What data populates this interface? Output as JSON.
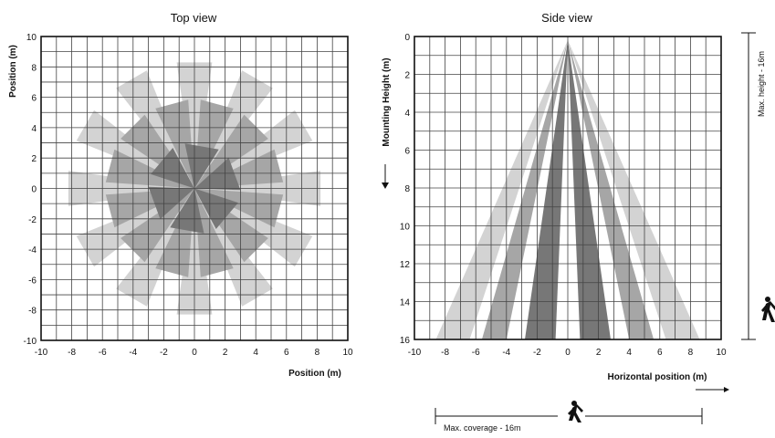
{
  "top_view": {
    "title": "Top view",
    "xlabel": "Position (m)",
    "ylabel": "Position (m)",
    "x_ticks": [
      "-10",
      "-8",
      "-6",
      "-4",
      "-2",
      "0",
      "2",
      "4",
      "6",
      "8",
      "10"
    ],
    "y_ticks": [
      "10",
      "8",
      "6",
      "4",
      "2",
      "0",
      "-2",
      "-4",
      "-6",
      "-8",
      "-10"
    ]
  },
  "side_view": {
    "title": "Side view",
    "xlabel": "Horizontal position (m)",
    "ylabel": "Mounting Height (m)",
    "x_ticks": [
      "-10",
      "-8",
      "-6",
      "-4",
      "-2",
      "0",
      "2",
      "4",
      "6",
      "8",
      "10"
    ],
    "y_ticks": [
      "0",
      "2",
      "4",
      "6",
      "8",
      "10",
      "12",
      "14",
      "16"
    ],
    "max_height_label": "Max. height - 16m",
    "max_coverage_label": "Max. coverage - 16m"
  },
  "colors": {
    "light": "#d3d3d3",
    "mid": "#a6a6a6",
    "dark": "#777777",
    "grid": "#444444"
  },
  "chart_data": [
    {
      "type": "other",
      "title": "Top view",
      "xlabel": "Position (m)",
      "ylabel": "Position (m)",
      "xlim": [
        -10,
        10
      ],
      "ylim": [
        -10,
        10
      ],
      "grid": true,
      "rings": [
        {
          "shade": "dark",
          "radius_m": 3,
          "count": 6
        },
        {
          "shade": "mid",
          "radius_m": 5.8,
          "count": 12
        },
        {
          "shade": "light",
          "radius_m": 8.3,
          "count": 12
        }
      ]
    },
    {
      "type": "other",
      "title": "Side view",
      "xlabel": "Horizontal position (m)",
      "ylabel": "Mounting Height (m)",
      "xlim": [
        -10,
        10
      ],
      "ylim": [
        0,
        16
      ],
      "grid": true,
      "apex": {
        "x": 0,
        "height": 0
      },
      "beams": [
        {
          "shade": "light",
          "x_at_16m": [
            -8.6,
            -6.4
          ]
        },
        {
          "shade": "mid",
          "x_at_16m": [
            -5.6,
            -4
          ]
        },
        {
          "shade": "dark",
          "x_at_16m": [
            -2.8,
            -0.8
          ]
        },
        {
          "shade": "dark",
          "x_at_16m": [
            0.8,
            2.8
          ]
        },
        {
          "shade": "mid",
          "x_at_16m": [
            4,
            5.6
          ]
        },
        {
          "shade": "light",
          "x_at_16m": [
            6.4,
            8.6
          ]
        }
      ]
    }
  ]
}
